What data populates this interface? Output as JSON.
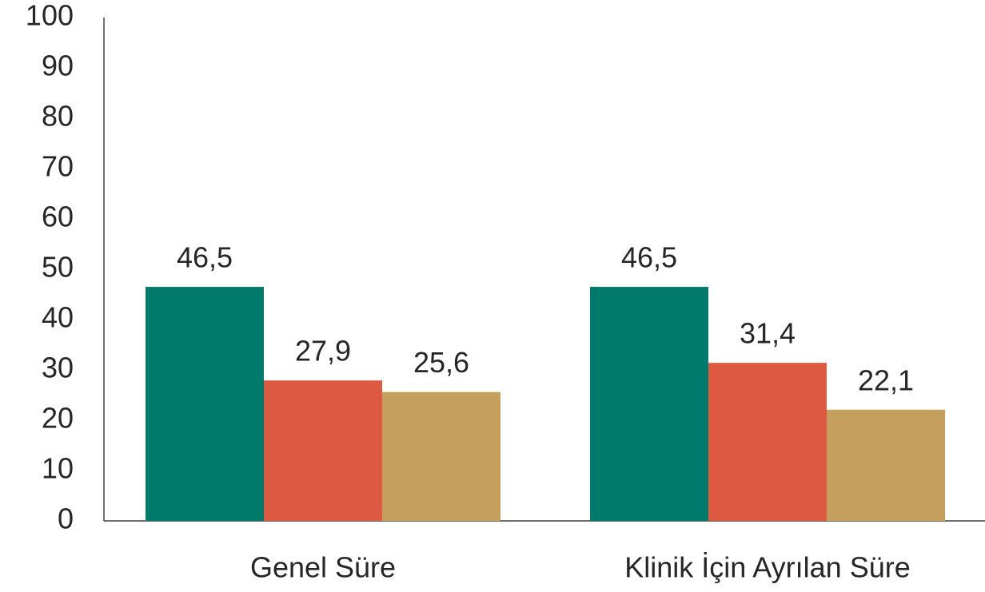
{
  "chart_data": {
    "type": "bar",
    "categories": [
      "Genel Süre",
      "Klinik İçin Ayrılan Süre"
    ],
    "series": [
      {
        "color": "#007a6a",
        "values": [
          46.5,
          46.5
        ],
        "value_labels": [
          "46,5",
          "46,5"
        ]
      },
      {
        "color": "#dc5a42",
        "values": [
          27.9,
          31.4
        ],
        "value_labels": [
          "27,9",
          "31,4"
        ]
      },
      {
        "color": "#c4a05c",
        "values": [
          25.6,
          22.1
        ],
        "value_labels": [
          "25,6",
          "22,1"
        ]
      }
    ],
    "ylim": [
      0,
      100
    ],
    "yticks": [
      0,
      10,
      20,
      30,
      40,
      50,
      60,
      70,
      80,
      90,
      100
    ],
    "grid": false
  }
}
